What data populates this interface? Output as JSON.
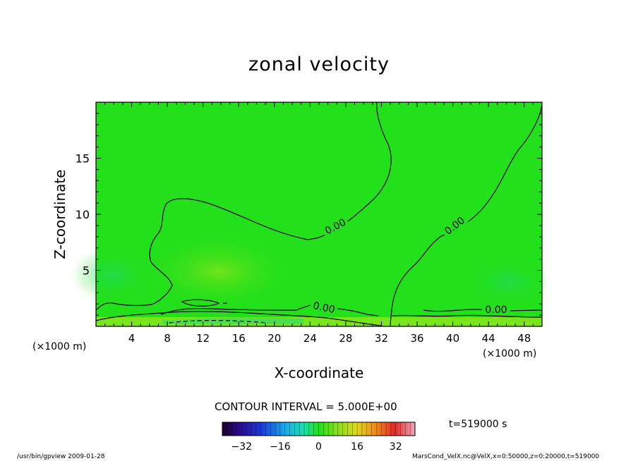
{
  "chart_data": {
    "type": "heatmap",
    "title": "zonal velocity",
    "xlabel": "X-coordinate",
    "ylabel": "Z-coordinate",
    "x_unit": "(×1000 m)",
    "y_unit": "(×1000 m)",
    "xlim": [
      0,
      50
    ],
    "ylim": [
      0,
      20
    ],
    "x_ticks": [
      4,
      8,
      12,
      16,
      20,
      24,
      28,
      32,
      36,
      40,
      44,
      48
    ],
    "y_ticks": [
      5,
      10,
      15
    ],
    "contour_interval": "CONTOUR INTERVAL = 5.000E+00",
    "contour_labels": [
      "0.00",
      "0.00",
      "0.00",
      "0.00"
    ],
    "colorbar": {
      "min": -40,
      "max": 40,
      "ticks": [
        -32,
        -16,
        0,
        16,
        32
      ]
    },
    "time": "t=519000 s",
    "grid": false
  },
  "footer": {
    "left": "/usr/bin/gpview   2009-01-28",
    "right": "MarsCond_VelX.nc@VelX,x=0:50000,z=0:20000,t=519000"
  },
  "colors": {
    "field": "#22e01a",
    "field_light": "#6fe41a",
    "contour": "#000000"
  }
}
